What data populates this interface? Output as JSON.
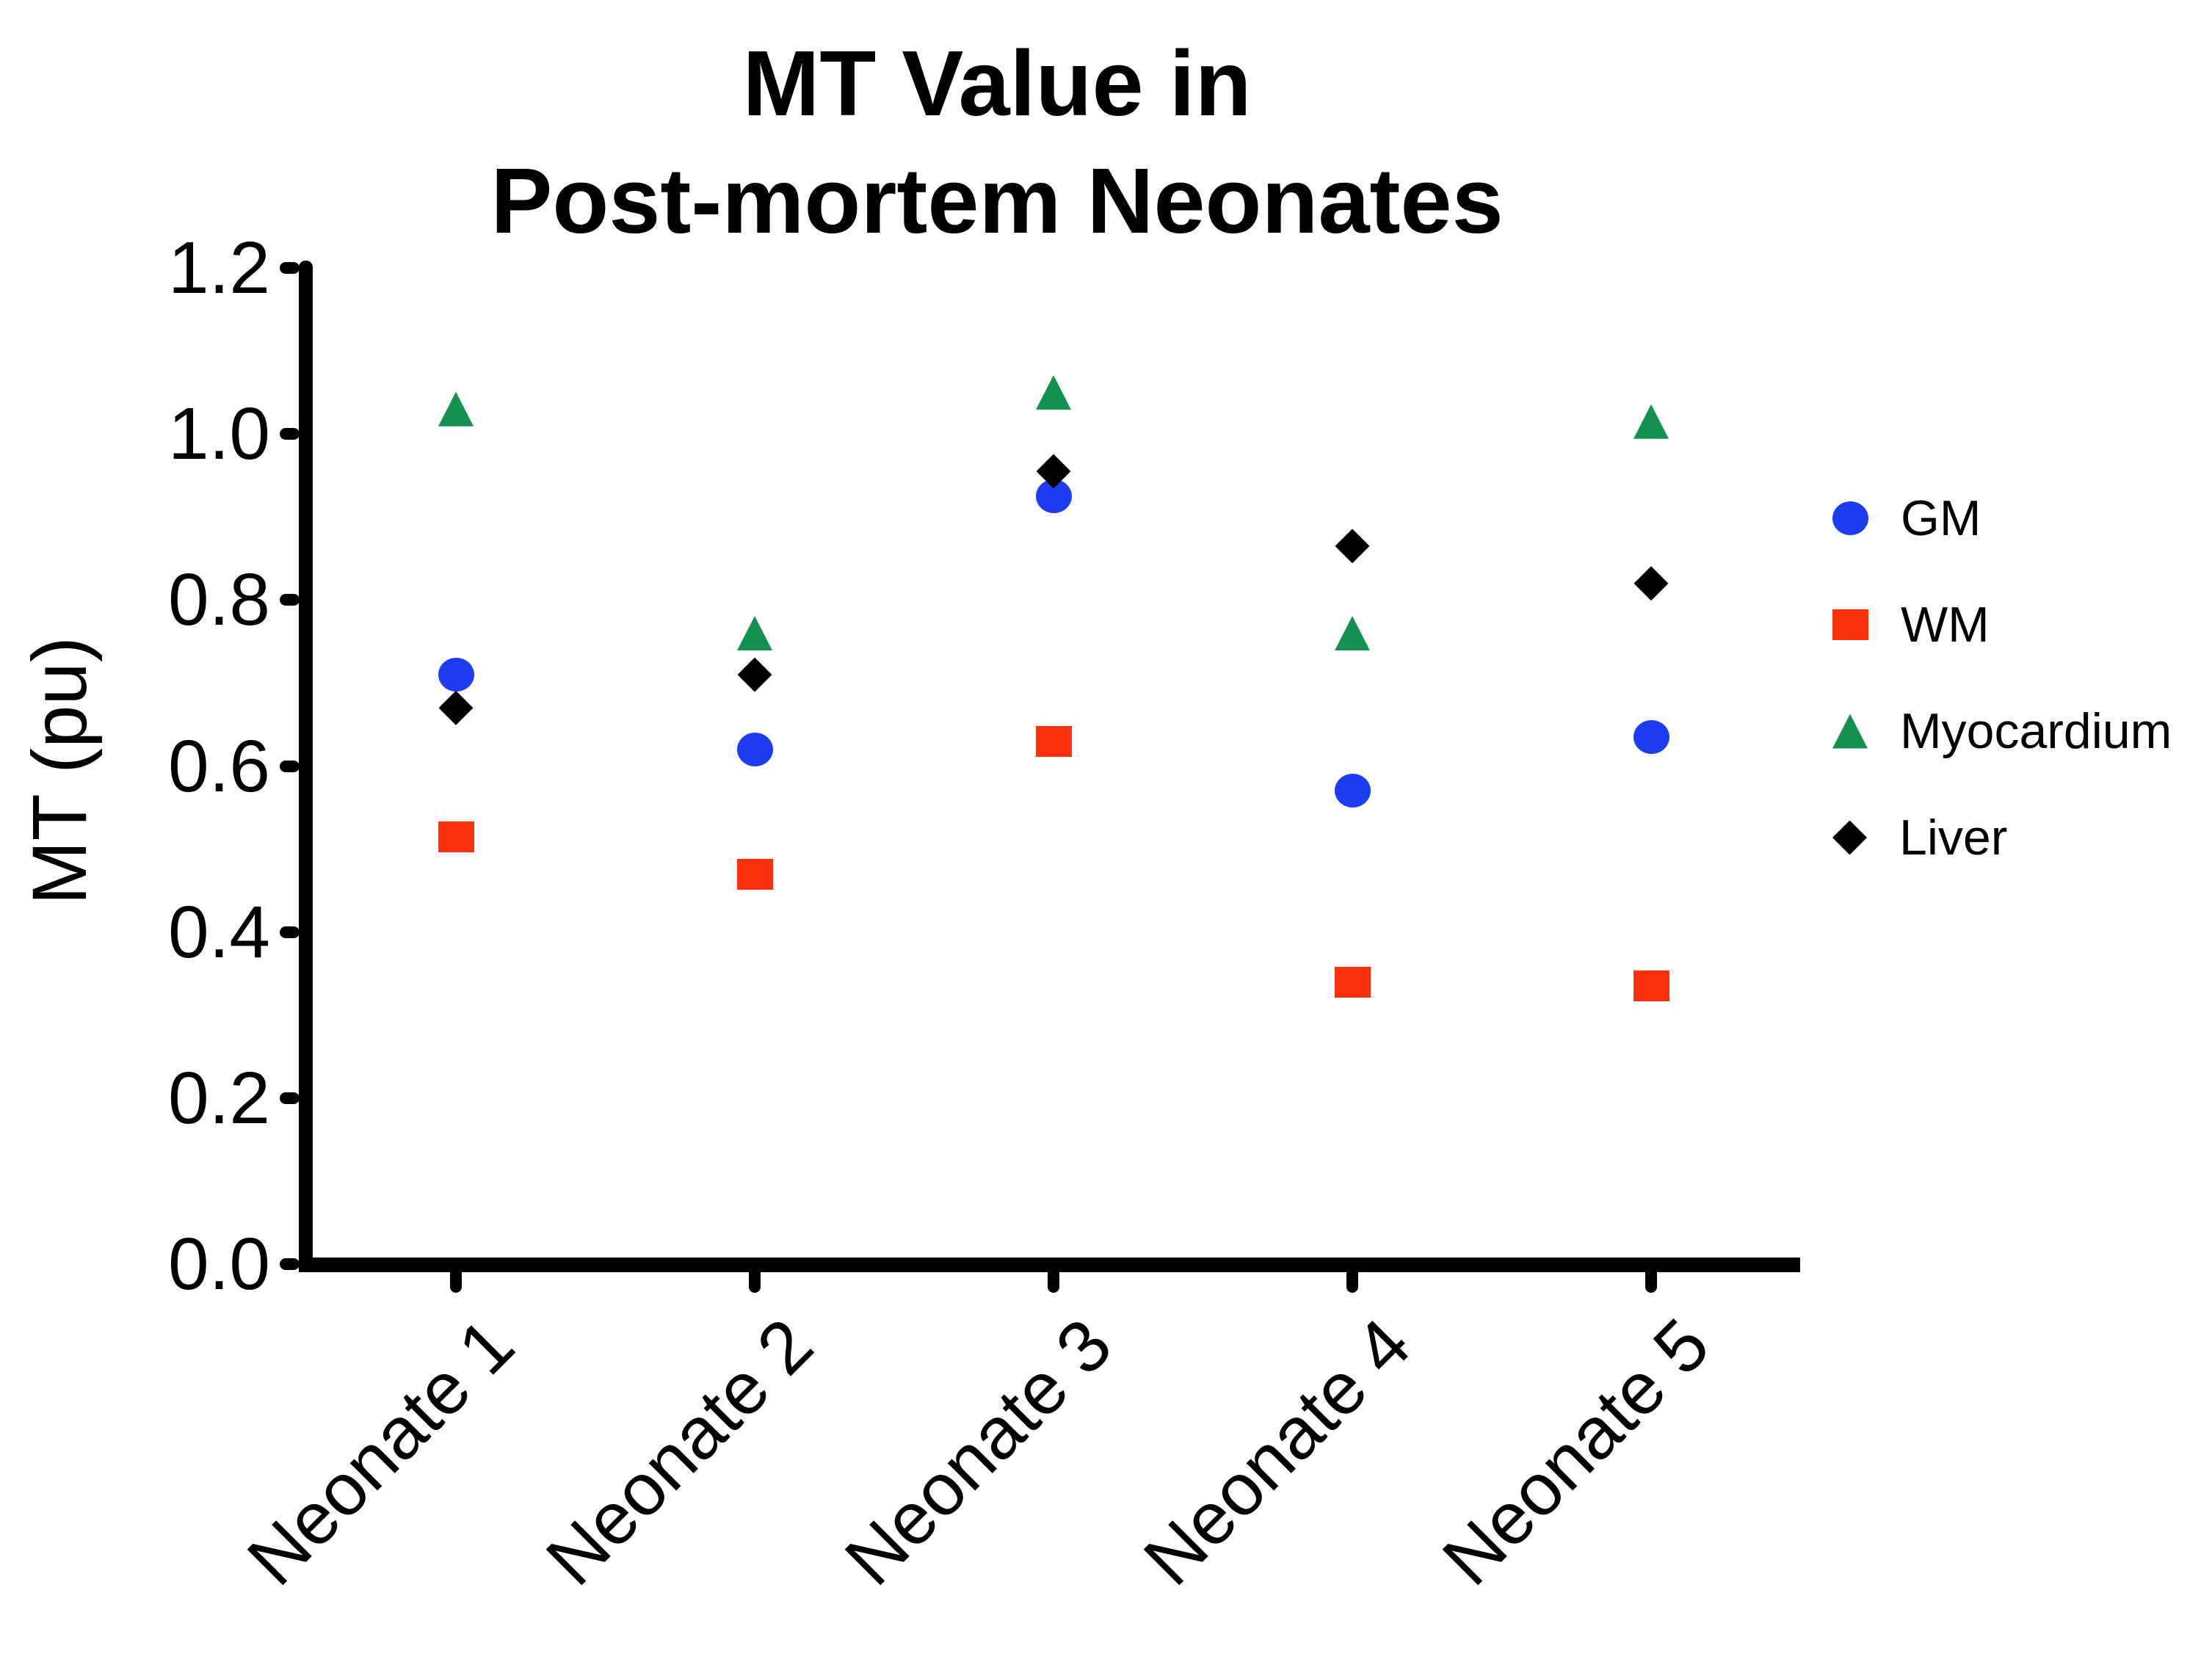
{
  "title": {
    "line1": "MT Value in",
    "line2": "Post-mortem Neonates"
  },
  "chart_data": {
    "type": "scatter",
    "title": "MT Value in Post-mortem Neonates",
    "xlabel": "",
    "ylabel": "MT (pu)",
    "ylim": [
      0.0,
      1.2
    ],
    "y_ticks": [
      "0.0",
      "0.2",
      "0.4",
      "0.6",
      "0.8",
      "1.0",
      "1.2"
    ],
    "grid": false,
    "legend_position": "right",
    "categories": [
      "Neonate 1",
      "Neonate 2",
      "Neonate 3",
      "Neonate 4",
      "Neonate 5"
    ],
    "series": [
      {
        "name": "GM",
        "marker": "circle",
        "color": "#1E3CF2",
        "values": [
          0.71,
          0.62,
          0.925,
          0.57,
          0.635
        ]
      },
      {
        "name": "WM",
        "marker": "square",
        "color": "#F8300C",
        "values": [
          0.515,
          0.47,
          0.63,
          0.34,
          0.335
        ]
      },
      {
        "name": "Myocardium",
        "marker": "triangle",
        "color": "#12914F",
        "values": [
          1.03,
          0.76,
          1.05,
          0.76,
          1.015
        ]
      },
      {
        "name": "Liver",
        "marker": "diamond",
        "color": "#000000",
        "values": [
          0.67,
          0.71,
          0.955,
          0.865,
          0.82
        ]
      }
    ]
  }
}
